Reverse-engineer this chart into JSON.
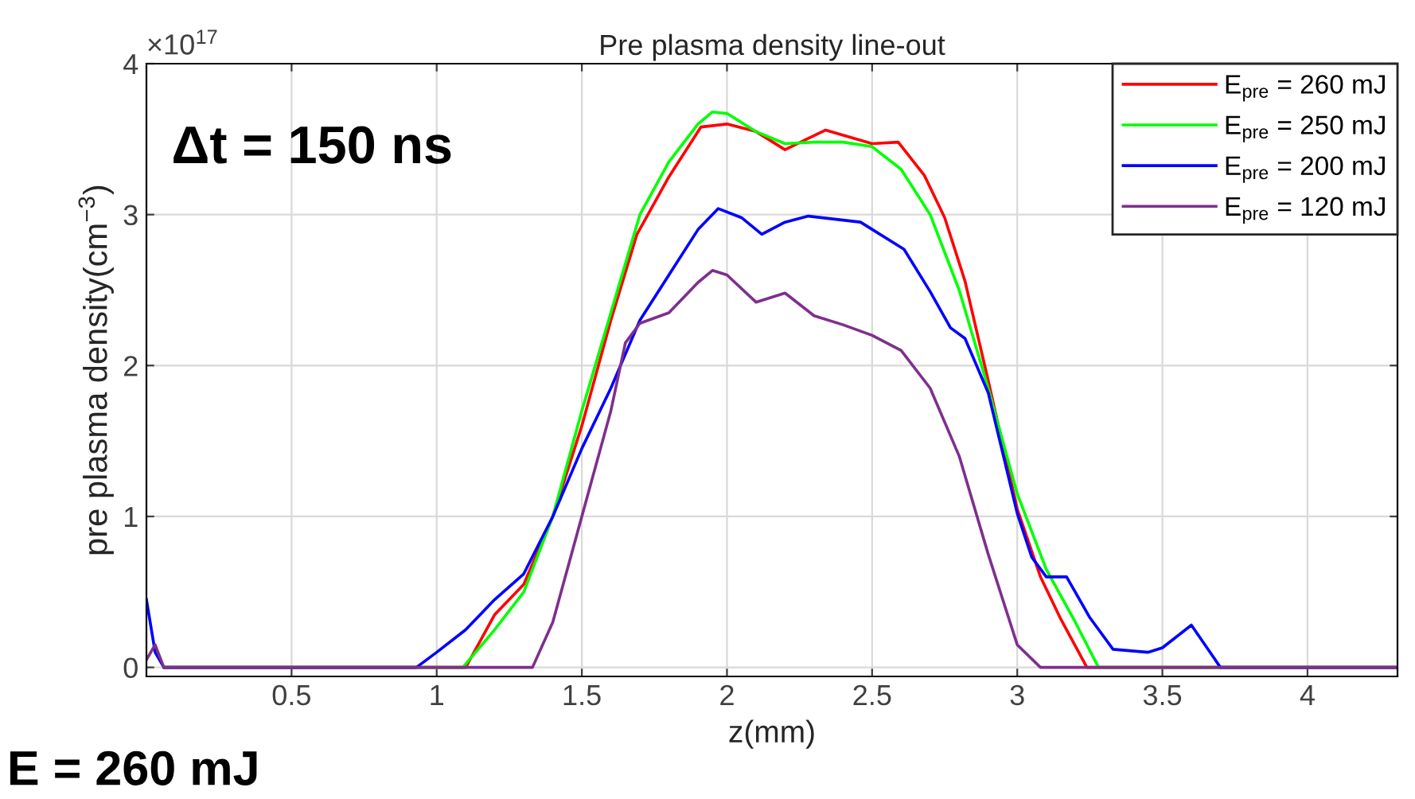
{
  "chart_data": {
    "type": "line",
    "title": "Pre plasma density line-out",
    "xlabel": "z(mm)",
    "ylabel": "pre plasma density(cm$^{−3}$)",
    "annotations": [
      "×10$^{17}$",
      "Δt = 150 ns",
      "E = 260 mJ"
    ],
    "xlim": [
      0,
      4.31
    ],
    "ylim": [
      -0.06,
      4
    ],
    "xticks": [
      0.5,
      1,
      1.5,
      2,
      2.5,
      3,
      3.5,
      4
    ],
    "yticks": [
      0,
      1,
      2,
      3,
      4
    ],
    "grid": true,
    "legend": "top right",
    "marker": "none",
    "line_style": "solid",
    "series": [
      {
        "name": "E$_{pre}$ = 260 mJ",
        "color": "#ff0000",
        "x": [
          0.06,
          1.1,
          1.2,
          1.3,
          1.4,
          1.5,
          1.6,
          1.69,
          1.8,
          1.91,
          2.0,
          2.1,
          2.2,
          2.34,
          2.5,
          2.59,
          2.68,
          2.75,
          2.82,
          2.9,
          3.0,
          3.08,
          3.15,
          3.24,
          4.31
        ],
        "values": [
          0,
          0,
          0.35,
          0.55,
          1.0,
          1.6,
          2.3,
          2.87,
          3.25,
          3.58,
          3.6,
          3.55,
          3.43,
          3.56,
          3.47,
          3.48,
          3.26,
          2.98,
          2.56,
          1.9,
          1.05,
          0.6,
          0.32,
          0,
          0
        ]
      },
      {
        "name": "E$_{pre}$ = 250 mJ",
        "color": "#00ff00",
        "x": [
          0.06,
          1.09,
          1.2,
          1.3,
          1.4,
          1.5,
          1.6,
          1.7,
          1.8,
          1.9,
          1.95,
          2.0,
          2.1,
          2.2,
          2.3,
          2.4,
          2.5,
          2.6,
          2.7,
          2.8,
          2.9,
          3.0,
          3.1,
          3.2,
          3.28,
          4.31
        ],
        "values": [
          0,
          0,
          0.25,
          0.5,
          1.0,
          1.7,
          2.35,
          3.0,
          3.35,
          3.6,
          3.68,
          3.67,
          3.55,
          3.47,
          3.48,
          3.48,
          3.45,
          3.3,
          3.0,
          2.5,
          1.85,
          1.15,
          0.65,
          0.3,
          0,
          0
        ]
      },
      {
        "name": "E$_{pre}$ = 200 mJ",
        "color": "#0000ff",
        "x": [
          0,
          0.03,
          0.06,
          0.93,
          1.0,
          1.1,
          1.2,
          1.3,
          1.4,
          1.5,
          1.6,
          1.7,
          1.8,
          1.9,
          1.97,
          2.05,
          2.12,
          2.2,
          2.28,
          2.46,
          2.61,
          2.7,
          2.77,
          2.82,
          2.9,
          3.0,
          3.05,
          3.1,
          3.17,
          3.25,
          3.33,
          3.45,
          3.5,
          3.6,
          3.7,
          4.31
        ],
        "values": [
          0.45,
          0.1,
          0,
          0,
          0.1,
          0.25,
          0.45,
          0.62,
          1.0,
          1.45,
          1.85,
          2.3,
          2.6,
          2.9,
          3.04,
          2.98,
          2.87,
          2.95,
          2.99,
          2.95,
          2.77,
          2.49,
          2.25,
          2.18,
          1.82,
          1.02,
          0.73,
          0.6,
          0.6,
          0.33,
          0.12,
          0.1,
          0.13,
          0.28,
          0,
          0
        ]
      },
      {
        "name": "E$_{pre}$ = 120 mJ",
        "color": "#7e2f8e",
        "x": [
          0,
          0.03,
          0.06,
          1.33,
          1.4,
          1.5,
          1.6,
          1.65,
          1.7,
          1.8,
          1.9,
          1.95,
          2.0,
          2.1,
          2.2,
          2.3,
          2.4,
          2.5,
          2.6,
          2.7,
          2.8,
          2.9,
          3.0,
          3.08,
          4.31
        ],
        "values": [
          0.05,
          0.15,
          0,
          0,
          0.3,
          1.0,
          1.7,
          2.15,
          2.28,
          2.35,
          2.55,
          2.63,
          2.6,
          2.42,
          2.48,
          2.33,
          2.27,
          2.2,
          2.1,
          1.85,
          1.4,
          0.75,
          0.15,
          0,
          0
        ]
      }
    ]
  }
}
